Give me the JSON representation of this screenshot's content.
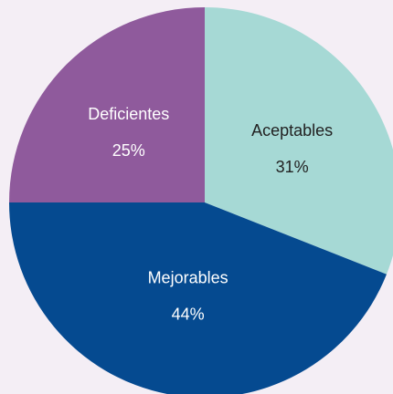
{
  "chart_data": {
    "type": "pie",
    "title": "",
    "categories": [
      "Aceptables",
      "Mejorables",
      "Deficientes"
    ],
    "values": [
      31,
      44,
      25
    ],
    "value_labels": [
      "31%",
      "44%",
      "25%"
    ],
    "colors": [
      "#a6d9d5",
      "#054a90",
      "#8f5a9c"
    ],
    "label_colors": [
      "#222222",
      "#ffffff",
      "#ffffff"
    ],
    "start": "12 o'clock, clockwise",
    "legend": "none (labels inside slices)"
  },
  "colors": {
    "background": "#f4eef5"
  }
}
